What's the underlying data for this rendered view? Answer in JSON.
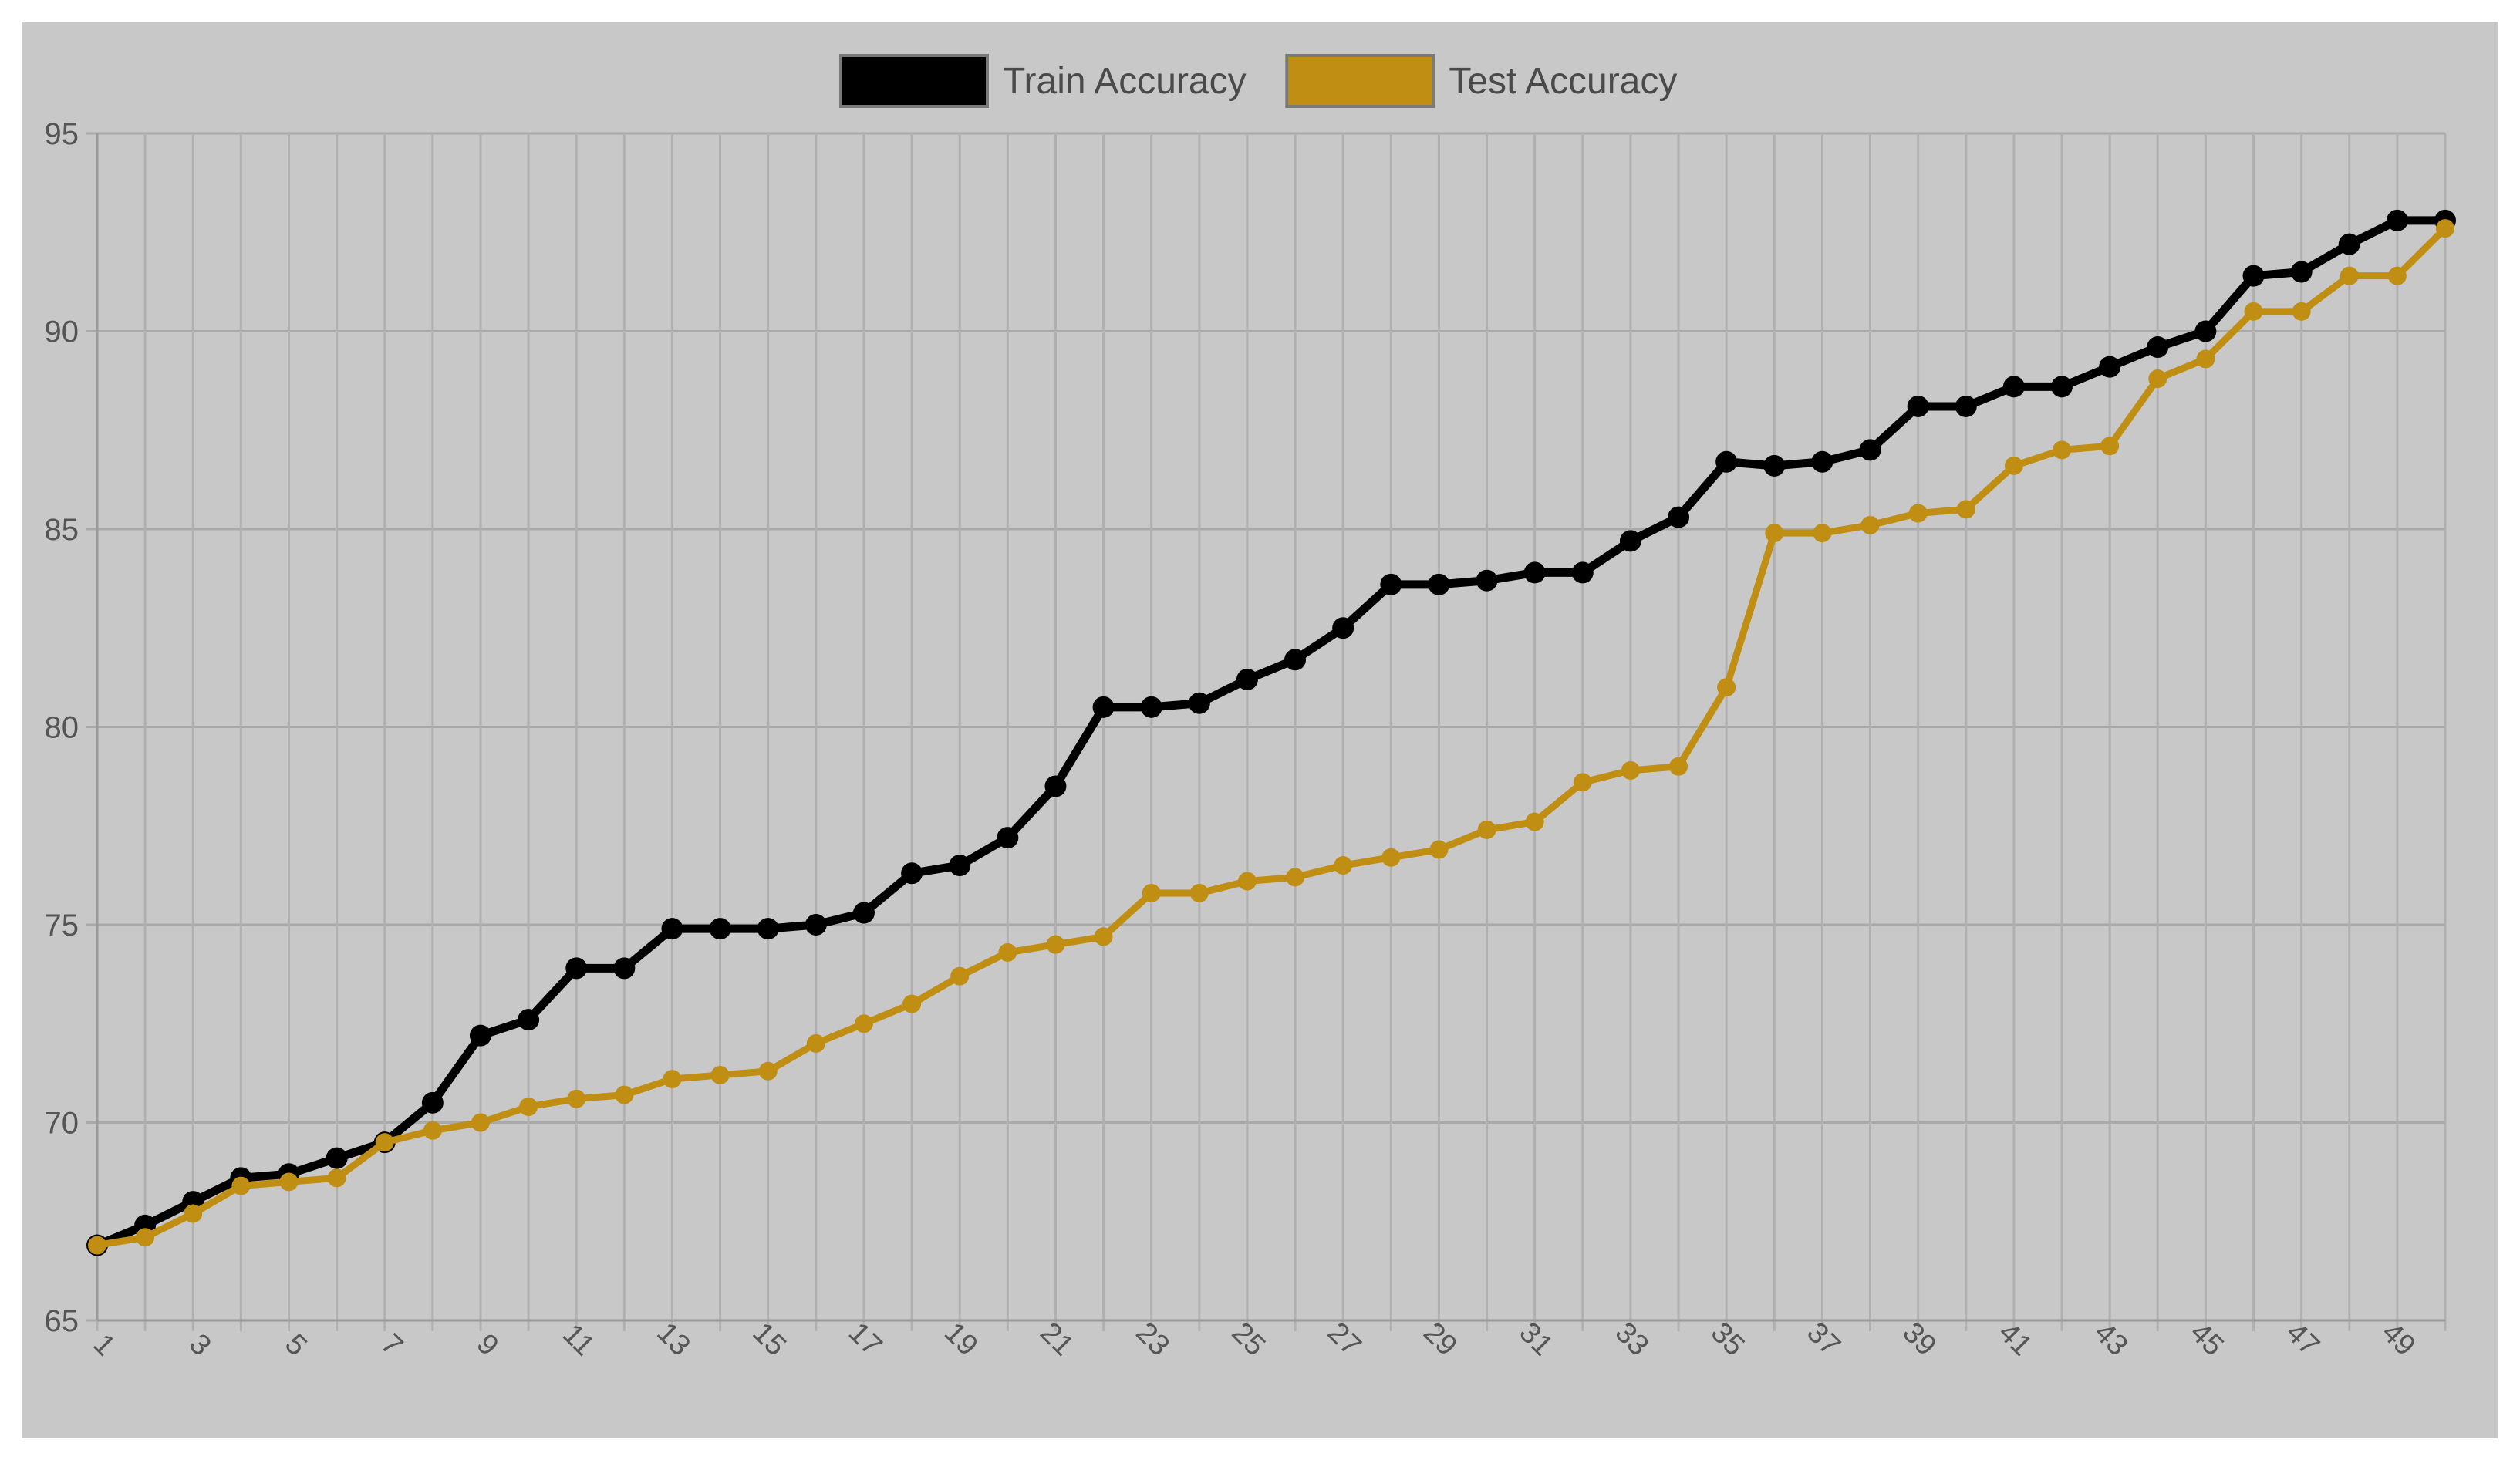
{
  "chart_data": {
    "type": "line",
    "title": "",
    "xlabel": "",
    "ylabel": "",
    "ylim": [
      65,
      95
    ],
    "y_ticks": [
      "65",
      "70",
      "75",
      "80",
      "85",
      "90",
      "95"
    ],
    "x": [
      1,
      2,
      3,
      4,
      5,
      6,
      7,
      8,
      9,
      10,
      11,
      12,
      13,
      14,
      15,
      16,
      17,
      18,
      19,
      20,
      21,
      22,
      23,
      24,
      25,
      26,
      27,
      28,
      29,
      30,
      31,
      32,
      33,
      34,
      35,
      36,
      37,
      38,
      39,
      40,
      41,
      42,
      43,
      44,
      45,
      46,
      47,
      48,
      49,
      50
    ],
    "x_tick_labels": [
      "1",
      "3",
      "5",
      "7",
      "9",
      "11",
      "13",
      "15",
      "17",
      "19",
      "21",
      "23",
      "25",
      "27",
      "29",
      "31",
      "33",
      "35",
      "37",
      "39",
      "41",
      "43",
      "45",
      "47",
      "49"
    ],
    "grid": true,
    "legend_position": "top-center",
    "series": [
      {
        "name": "Train Accuracy",
        "color": "#000000",
        "values": [
          66.9,
          67.4,
          68.0,
          68.6,
          68.7,
          69.1,
          69.5,
          70.5,
          72.2,
          72.6,
          73.9,
          73.9,
          74.9,
          74.9,
          74.9,
          75.0,
          75.3,
          76.3,
          76.5,
          77.2,
          78.5,
          80.5,
          80.5,
          80.6,
          81.2,
          81.7,
          82.5,
          83.6,
          83.6,
          83.7,
          83.9,
          83.9,
          84.7,
          85.3,
          86.7,
          86.6,
          86.7,
          87.0,
          88.1,
          88.1,
          88.6,
          88.6,
          89.1,
          89.6,
          90.0,
          91.4,
          91.5,
          92.2,
          92.8,
          92.8
        ]
      },
      {
        "name": "Test Accuracy",
        "color": "#bf8e12",
        "values": [
          66.9,
          67.1,
          67.7,
          68.4,
          68.5,
          68.6,
          69.5,
          69.8,
          70.0,
          70.4,
          70.6,
          70.7,
          71.1,
          71.2,
          71.3,
          72.0,
          72.5,
          73.0,
          73.7,
          74.3,
          74.5,
          74.7,
          75.8,
          75.8,
          76.1,
          76.2,
          76.5,
          76.7,
          76.9,
          77.4,
          77.6,
          78.6,
          78.9,
          79.0,
          81.0,
          84.9,
          84.9,
          85.1,
          85.4,
          85.5,
          86.6,
          87.0,
          87.1,
          88.8,
          89.3,
          90.5,
          90.5,
          91.4,
          91.4,
          92.6
        ]
      }
    ]
  }
}
